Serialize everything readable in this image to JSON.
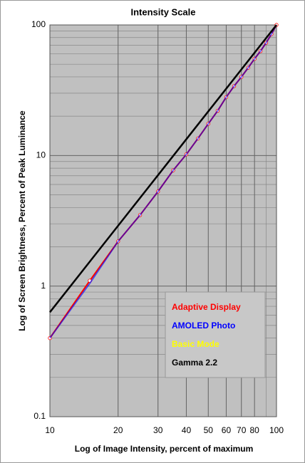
{
  "chart_data": {
    "type": "line",
    "title": "Intensity Scale",
    "x_label": "Log of Image Intensity, percent of maximum",
    "y_label": "Log of Screen Brightness, Percent of Peak Luminance",
    "log_x": true,
    "log_y": true,
    "grid": true,
    "xlim": [
      10,
      100
    ],
    "ylim": [
      0.1,
      100
    ],
    "xticks": [
      10,
      20,
      30,
      40,
      50,
      60,
      70,
      80,
      100
    ],
    "yticks": [
      0.1,
      1,
      10,
      100
    ],
    "x": [
      10,
      15,
      20,
      25,
      30,
      35,
      40,
      45,
      50,
      55,
      60,
      65,
      70,
      75,
      80,
      85,
      90,
      95,
      100
    ],
    "legend": "lower right",
    "series": [
      {
        "name": "Basic Mode",
        "color": "#ffff00",
        "values": [
          0.4,
          1.1,
          2.2,
          3.5,
          5.3,
          7.7,
          10.2,
          13.5,
          17.5,
          22,
          28,
          34,
          40,
          47,
          55,
          63,
          73,
          85,
          100
        ]
      },
      {
        "name": "Adaptive Display",
        "color": "#ff0000",
        "values": [
          0.4,
          1.1,
          2.2,
          3.5,
          5.3,
          7.7,
          10.2,
          13.5,
          17.5,
          22,
          28,
          34,
          40,
          47,
          55,
          63,
          73,
          85,
          100
        ]
      },
      {
        "name": "AMOLED Photo",
        "color": "#0000ff",
        "values": [
          0.4,
          1.05,
          2.2,
          3.5,
          5.3,
          7.7,
          10.2,
          13.5,
          17.5,
          22,
          28,
          34,
          40,
          47,
          55,
          63,
          73,
          85,
          100
        ]
      },
      {
        "name": "Gamma 2.2",
        "color": "#000000",
        "x": [
          10,
          100
        ],
        "values": [
          0.631,
          100
        ]
      }
    ],
    "legend_order": [
      1,
      2,
      0,
      3
    ]
  }
}
